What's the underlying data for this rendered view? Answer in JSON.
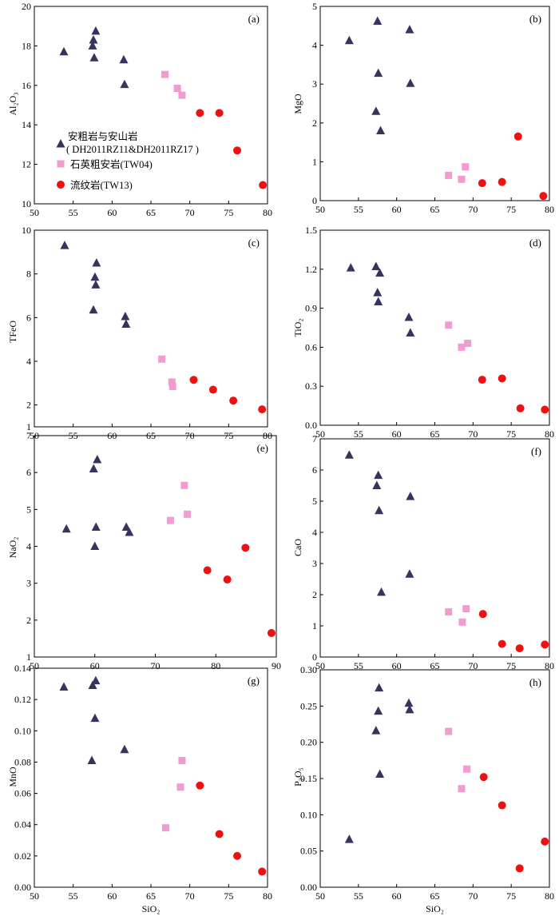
{
  "figure": {
    "legend": [
      {
        "name": "安粗岩与安山岩",
        "name2": "( DH2011RZ11&DH2011RZ17 )",
        "marker": "triangle",
        "color": "#34345e"
      },
      {
        "name": "石英粗安岩(TW04)",
        "marker": "square",
        "color": "#f29bd0"
      },
      {
        "name": "流纹岩(TW13)",
        "marker": "circle",
        "color": "#ee1111"
      }
    ]
  },
  "chart_data": [
    {
      "type": "scatter",
      "label": "(a)",
      "xlabel": "",
      "ylabel": "Al₂O₃",
      "xlim": [
        50,
        80
      ],
      "ylim": [
        10,
        20
      ],
      "xticks": [
        "50",
        "55",
        "60",
        "65",
        "70",
        "75",
        "80"
      ],
      "yticks": [
        "10",
        "12",
        "14",
        "16",
        "18",
        "20"
      ],
      "series": [
        {
          "marker": "triangle",
          "points": [
            [
              53.8,
              17.7
            ],
            [
              57.5,
              18.0
            ],
            [
              57.6,
              18.3
            ],
            [
              57.7,
              17.4
            ],
            [
              57.9,
              18.75
            ],
            [
              61.5,
              17.3
            ],
            [
              61.6,
              16.05
            ]
          ]
        },
        {
          "marker": "square",
          "points": [
            [
              66.8,
              16.55
            ],
            [
              68.4,
              15.85
            ],
            [
              69.0,
              15.5
            ]
          ]
        },
        {
          "marker": "circle",
          "points": [
            [
              71.3,
              14.6
            ],
            [
              73.8,
              14.6
            ],
            [
              76.1,
              12.7
            ],
            [
              79.4,
              10.95
            ]
          ]
        }
      ]
    },
    {
      "type": "scatter",
      "label": "(b)",
      "xlabel": "",
      "ylabel": "MgO",
      "xlim": [
        50,
        80
      ],
      "ylim": [
        0,
        5
      ],
      "xticks": [
        "50",
        "55",
        "60",
        "65",
        "70",
        "75",
        "80"
      ],
      "yticks": [
        "0",
        "1",
        "2",
        "3",
        "4",
        "5"
      ],
      "series": [
        {
          "marker": "triangle",
          "points": [
            [
              53.8,
              4.12
            ],
            [
              57.3,
              2.3
            ],
            [
              57.5,
              4.62
            ],
            [
              57.6,
              3.28
            ],
            [
              57.9,
              1.8
            ],
            [
              61.7,
              4.4
            ],
            [
              61.8,
              3.02
            ]
          ]
        },
        {
          "marker": "square",
          "points": [
            [
              66.8,
              0.65
            ],
            [
              68.5,
              0.55
            ],
            [
              69.0,
              0.87
            ]
          ]
        },
        {
          "marker": "circle",
          "points": [
            [
              71.2,
              0.45
            ],
            [
              73.8,
              0.48
            ],
            [
              75.9,
              1.65
            ],
            [
              79.2,
              0.12
            ]
          ]
        }
      ]
    },
    {
      "type": "scatter",
      "label": "(c)",
      "xlabel": "",
      "ylabel": "TFeO",
      "xlim": [
        50,
        80
      ],
      "ylim": [
        1,
        10
      ],
      "xticks": [
        "50",
        "55",
        "60",
        "65",
        "70",
        "75",
        "80"
      ],
      "yticks": [
        "1",
        "2",
        "4",
        "6",
        "8",
        "10"
      ],
      "series": [
        {
          "marker": "triangle",
          "points": [
            [
              53.9,
              9.3
            ],
            [
              57.6,
              6.35
            ],
            [
              57.8,
              7.85
            ],
            [
              57.9,
              7.5
            ],
            [
              58.0,
              8.5
            ],
            [
              61.7,
              6.05
            ],
            [
              61.8,
              5.7
            ]
          ]
        },
        {
          "marker": "square",
          "points": [
            [
              66.4,
              4.1
            ],
            [
              67.7,
              3.05
            ],
            [
              67.8,
              2.85
            ]
          ]
        },
        {
          "marker": "circle",
          "points": [
            [
              70.5,
              3.15
            ],
            [
              73.0,
              2.7
            ],
            [
              75.6,
              2.2
            ],
            [
              79.3,
              1.8
            ]
          ]
        }
      ]
    },
    {
      "type": "scatter",
      "label": "(d)",
      "xlabel": "",
      "ylabel": "TiO₂",
      "xlim": [
        50,
        80
      ],
      "ylim": [
        0,
        1.5
      ],
      "xticks": [
        "50",
        "55",
        "60",
        "65",
        "70",
        "75",
        "80"
      ],
      "yticks": [
        "0.0",
        "0.3",
        "0.6",
        "0.9",
        "1.2",
        "1.5"
      ],
      "series": [
        {
          "marker": "triangle",
          "points": [
            [
              54.0,
              1.21
            ],
            [
              57.3,
              1.22
            ],
            [
              57.5,
              1.02
            ],
            [
              57.6,
              0.95
            ],
            [
              57.8,
              1.17
            ],
            [
              61.6,
              0.83
            ],
            [
              61.8,
              0.71
            ]
          ]
        },
        {
          "marker": "square",
          "points": [
            [
              66.8,
              0.77
            ],
            [
              68.5,
              0.6
            ],
            [
              69.3,
              0.63
            ]
          ]
        },
        {
          "marker": "circle",
          "points": [
            [
              71.2,
              0.35
            ],
            [
              73.8,
              0.36
            ],
            [
              76.2,
              0.13
            ],
            [
              79.4,
              0.12
            ]
          ]
        }
      ]
    },
    {
      "type": "scatter",
      "label": "(e)",
      "xlabel": "",
      "ylabel": "NaO₂",
      "xlim": [
        50,
        90
      ],
      "ylim": [
        1,
        7
      ],
      "xticks": [
        "50",
        "60",
        "70",
        "80",
        "90"
      ],
      "yticks": [
        "1",
        "2",
        "3",
        "4",
        "5",
        "6",
        "7"
      ],
      "series": [
        {
          "marker": "triangle",
          "points": [
            [
              55.3,
              4.47
            ],
            [
              59.8,
              6.1
            ],
            [
              60.0,
              4.0
            ],
            [
              60.2,
              4.52
            ],
            [
              60.4,
              6.35
            ],
            [
              65.2,
              4.52
            ],
            [
              65.7,
              4.38
            ]
          ]
        },
        {
          "marker": "square",
          "points": [
            [
              72.5,
              4.7
            ],
            [
              74.8,
              5.65
            ],
            [
              75.3,
              4.87
            ]
          ]
        },
        {
          "marker": "circle",
          "points": [
            [
              78.6,
              3.35
            ],
            [
              81.9,
              3.1
            ],
            [
              84.9,
              3.96
            ],
            [
              89.2,
              1.65
            ]
          ]
        }
      ]
    },
    {
      "type": "scatter",
      "label": "(f)",
      "xlabel": "",
      "ylabel": "CaO",
      "xlim": [
        50,
        80
      ],
      "ylim": [
        0,
        7
      ],
      "xticks": [
        "50",
        "55",
        "60",
        "65",
        "70",
        "75",
        "80"
      ],
      "yticks": [
        "0",
        "1",
        "2",
        "3",
        "4",
        "5",
        "6",
        "7"
      ],
      "series": [
        {
          "marker": "triangle",
          "points": [
            [
              53.8,
              6.48
            ],
            [
              57.4,
              5.5
            ],
            [
              57.6,
              5.83
            ],
            [
              57.7,
              4.7
            ],
            [
              58.0,
              2.08
            ],
            [
              61.7,
              2.66
            ],
            [
              61.8,
              5.15
            ]
          ]
        },
        {
          "marker": "square",
          "points": [
            [
              66.8,
              1.45
            ],
            [
              68.6,
              1.12
            ],
            [
              69.1,
              1.55
            ]
          ]
        },
        {
          "marker": "circle",
          "points": [
            [
              71.3,
              1.38
            ],
            [
              73.8,
              0.42
            ],
            [
              76.1,
              0.28
            ],
            [
              79.4,
              0.4
            ]
          ]
        }
      ]
    },
    {
      "type": "scatter",
      "label": "(g)",
      "xlabel": "SiO₂",
      "ylabel": "MnO",
      "xlim": [
        50,
        80
      ],
      "ylim": [
        0,
        0.14
      ],
      "xticks": [
        "50",
        "55",
        "60",
        "65",
        "70",
        "75",
        "80"
      ],
      "yticks": [
        "0.00",
        "0.02",
        "0.04",
        "0.06",
        "0.08",
        "0.10",
        "0.12",
        "0.14"
      ],
      "series": [
        {
          "marker": "triangle",
          "points": [
            [
              53.8,
              0.128
            ],
            [
              57.4,
              0.081
            ],
            [
              57.5,
              0.129
            ],
            [
              57.8,
              0.108
            ],
            [
              57.9,
              0.132
            ],
            [
              61.6,
              0.088
            ]
          ]
        },
        {
          "marker": "square",
          "points": [
            [
              66.9,
              0.038
            ],
            [
              68.8,
              0.064
            ],
            [
              69.0,
              0.081
            ]
          ]
        },
        {
          "marker": "circle",
          "points": [
            [
              71.3,
              0.065
            ],
            [
              73.8,
              0.034
            ],
            [
              76.1,
              0.02
            ],
            [
              79.3,
              0.01
            ]
          ]
        }
      ]
    },
    {
      "type": "scatter",
      "label": "(h)",
      "xlabel": "SiO₂",
      "ylabel": "P₂O₅",
      "xlim": [
        50,
        80
      ],
      "ylim": [
        0,
        0.3
      ],
      "xticks": [
        "50",
        "55",
        "60",
        "65",
        "70",
        "75",
        "80"
      ],
      "yticks": [
        "0.00",
        "0.05",
        "0.10",
        "0.15",
        "0.20",
        "0.25",
        "0.30"
      ],
      "series": [
        {
          "marker": "triangle",
          "points": [
            [
              53.8,
              0.066
            ],
            [
              57.3,
              0.216
            ],
            [
              57.6,
              0.243
            ],
            [
              57.7,
              0.275
            ],
            [
              57.8,
              0.156
            ],
            [
              61.6,
              0.254
            ],
            [
              61.7,
              0.245
            ]
          ]
        },
        {
          "marker": "square",
          "points": [
            [
              66.8,
              0.215
            ],
            [
              68.5,
              0.136
            ],
            [
              69.2,
              0.163
            ]
          ]
        },
        {
          "marker": "circle",
          "points": [
            [
              71.4,
              0.152
            ],
            [
              73.8,
              0.113
            ],
            [
              76.1,
              0.026
            ],
            [
              79.4,
              0.063
            ]
          ]
        }
      ]
    }
  ]
}
